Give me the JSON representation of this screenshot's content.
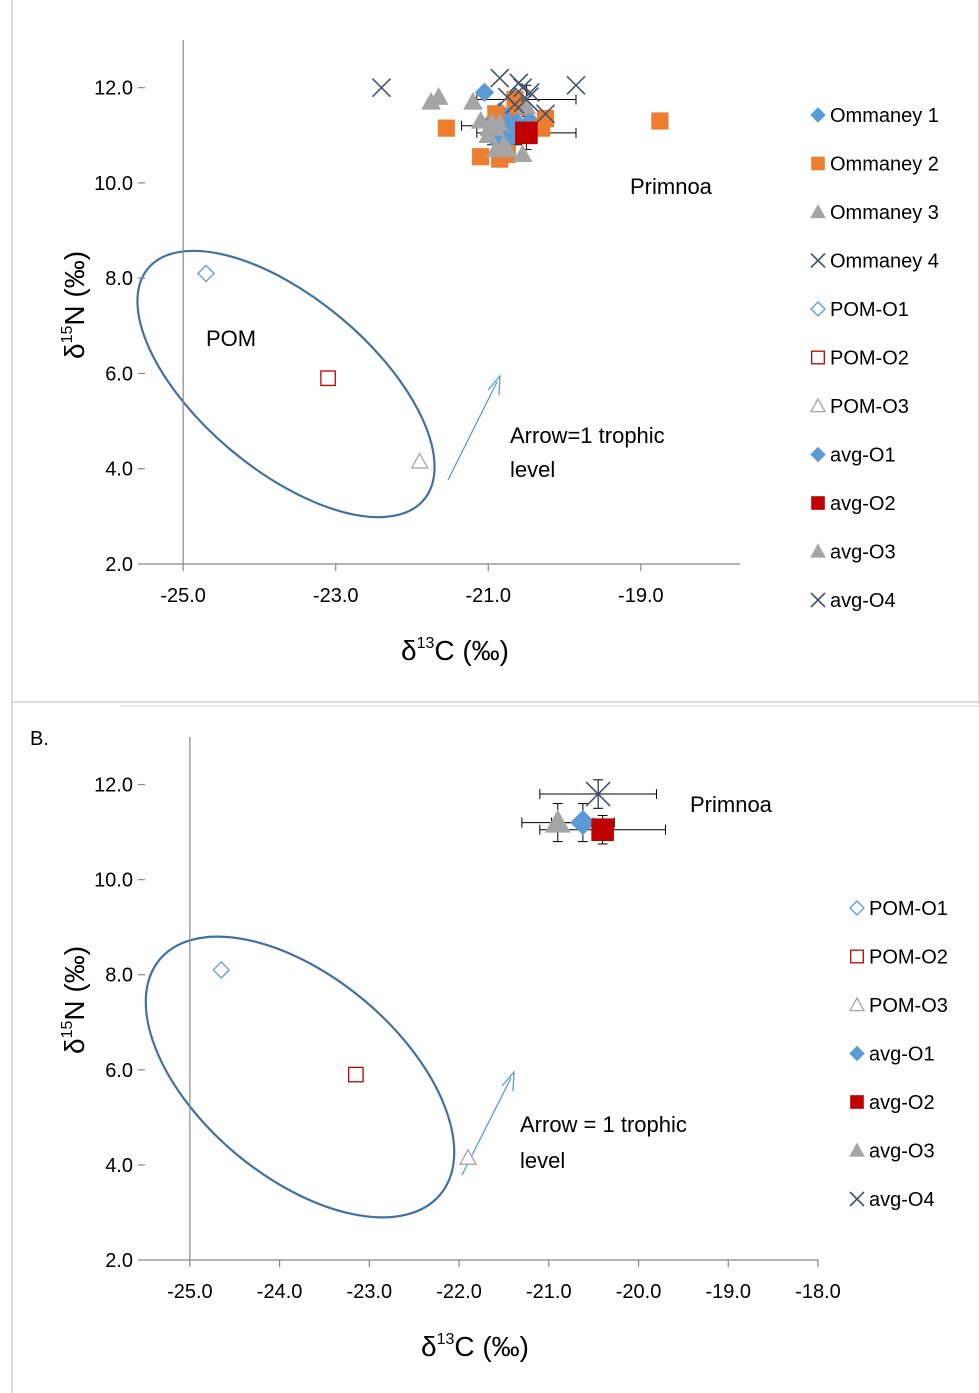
{
  "colors": {
    "blue": "#5B9BD5",
    "orange": "#ED7D31",
    "gray": "#A5A5A5",
    "navy": "#44546A",
    "red": "#C00000",
    "ellipse": "#41719C",
    "axis": "#868686",
    "error": "#000000"
  },
  "chart_data": [
    {
      "type": "scatter",
      "panel_label": "",
      "xlabel_main": "δ",
      "xlabel_sup": "13",
      "xlabel_rest": "C (‰)",
      "ylabel_main": "δ",
      "ylabel_sup": "15",
      "ylabel_rest": "N (‰)",
      "xlim": [
        -25.5,
        -17.7
      ],
      "ylim": [
        2.0,
        13.0
      ],
      "xticks": [
        -25.0,
        -23.0,
        -21.0,
        -19.0
      ],
      "yticks": [
        2.0,
        4.0,
        6.0,
        8.0,
        10.0,
        12.0
      ],
      "xtick_labels": [
        "-25.0",
        "-23.0",
        "-21.0",
        "-19.0"
      ],
      "ytick_labels": [
        "2.0",
        "4.0",
        "6.0",
        "8.0",
        "10.0",
        "12.0"
      ],
      "annotations": {
        "primnoa": "Primnoa",
        "pom": "POM",
        "arrow_line1": "Arrow=1 trophic",
        "arrow_line2": "level"
      },
      "legend_position": "right",
      "series": [
        {
          "name": "Ommaney 1",
          "marker": "diamond",
          "color": "blue",
          "x": [
            -21.05,
            -20.95,
            -20.9,
            -20.85,
            -20.75,
            -20.55,
            -20.45,
            -20.85,
            -20.7
          ],
          "y": [
            11.9,
            11.3,
            10.9,
            11.1,
            11.4,
            11.05,
            11.3,
            11.5,
            10.95
          ]
        },
        {
          "name": "Ommaney 2",
          "marker": "square",
          "color": "orange",
          "x": [
            -21.55,
            -21.1,
            -20.9,
            -20.85,
            -20.75,
            -20.6,
            -20.3,
            -20.25,
            -18.75,
            -20.65
          ],
          "y": [
            11.15,
            10.55,
            11.45,
            10.5,
            10.6,
            11.6,
            11.15,
            11.35,
            11.3,
            11.75
          ]
        },
        {
          "name": "Ommaney 3",
          "marker": "triangle",
          "color": "gray",
          "x": [
            -21.75,
            -21.65,
            -21.2,
            -21.1,
            -21.0,
            -20.9,
            -20.8,
            -20.75,
            -20.55,
            -20.5,
            -20.85
          ],
          "y": [
            11.7,
            11.8,
            11.7,
            11.3,
            11.0,
            10.7,
            10.8,
            10.7,
            10.6,
            11.6,
            11.25
          ]
        },
        {
          "name": "Ommaney 4",
          "marker": "x",
          "color": "navy",
          "x": [
            -22.4,
            -20.85,
            -20.75,
            -20.6,
            -20.55,
            -20.45,
            -20.25,
            -19.85,
            -20.65
          ],
          "y": [
            12.0,
            12.2,
            11.8,
            12.1,
            12.0,
            11.9,
            11.45,
            12.05,
            11.65
          ]
        },
        {
          "name": "POM-O1",
          "marker": "diamond-open",
          "color": "blue",
          "x": [
            -24.7
          ],
          "y": [
            8.1
          ]
        },
        {
          "name": "POM-O2",
          "marker": "square-open",
          "color": "red",
          "x": [
            -23.1
          ],
          "y": [
            5.9
          ]
        },
        {
          "name": "POM-O3",
          "marker": "triangle-open",
          "color": "gray",
          "x": [
            -21.9
          ],
          "y": [
            4.15
          ]
        },
        {
          "name": "avg-O1",
          "marker": "diamond",
          "color": "blue",
          "x": [
            -20.62
          ],
          "y": [
            11.2
          ],
          "xerr": [
            0.35
          ],
          "yerr": [
            0.4
          ]
        },
        {
          "name": "avg-O2",
          "marker": "square",
          "color": "red",
          "x": [
            -20.5
          ],
          "y": [
            11.05
          ],
          "xerr": [
            0.65
          ],
          "yerr": [
            0.35
          ]
        },
        {
          "name": "avg-O3",
          "marker": "triangle",
          "color": "gray",
          "x": [
            -20.95
          ],
          "y": [
            11.2
          ],
          "xerr": [
            0.4
          ],
          "yerr": [
            0.4
          ]
        },
        {
          "name": "avg-O4",
          "marker": "x",
          "color": "navy",
          "x": [
            -20.5
          ],
          "y": [
            11.75
          ],
          "xerr": [
            0.65
          ],
          "yerr": [
            0.3
          ]
        }
      ]
    },
    {
      "type": "scatter",
      "panel_label": "B.",
      "xlabel_main": "δ",
      "xlabel_sup": "13",
      "xlabel_rest": "C (‰)",
      "ylabel_main": "δ",
      "ylabel_sup": "15",
      "ylabel_rest": "N (‰)",
      "xlim": [
        -25.5,
        -18.0
      ],
      "ylim": [
        2.0,
        13.0
      ],
      "xticks": [
        -25.0,
        -24.0,
        -23.0,
        -22.0,
        -21.0,
        -20.0,
        -19.0,
        -18.0
      ],
      "yticks": [
        2.0,
        4.0,
        6.0,
        8.0,
        10.0,
        12.0
      ],
      "xtick_labels": [
        "-25.0",
        "-24.0",
        "-23.0",
        "-22.0",
        "-21.0",
        "-20.0",
        "-19.0",
        "-18.0"
      ],
      "ytick_labels": [
        "2.0",
        "4.0",
        "6.0",
        "8.0",
        "10.0",
        "12.0"
      ],
      "annotations": {
        "primnoa": "Primnoa",
        "arrow_line1": "Arrow = 1 trophic",
        "arrow_line2": "level"
      },
      "legend_position": "right",
      "series": [
        {
          "name": "POM-O1",
          "marker": "diamond-open",
          "color": "blue",
          "x": [
            -24.65
          ],
          "y": [
            8.1
          ]
        },
        {
          "name": "POM-O2",
          "marker": "square-open",
          "color": "red",
          "x": [
            -23.15
          ],
          "y": [
            5.9
          ]
        },
        {
          "name": "POM-O3",
          "marker": "triangle-open",
          "color": "gray",
          "x": [
            -21.9
          ],
          "y": [
            4.15
          ]
        },
        {
          "name": "avg-O1",
          "marker": "diamond",
          "color": "blue",
          "x": [
            -20.62
          ],
          "y": [
            11.2
          ],
          "xerr": [
            0.35
          ],
          "yerr": [
            0.4
          ]
        },
        {
          "name": "avg-O2",
          "marker": "square",
          "color": "red",
          "x": [
            -20.4
          ],
          "y": [
            11.05
          ],
          "xerr": [
            0.7
          ],
          "yerr": [
            0.3
          ]
        },
        {
          "name": "avg-O3",
          "marker": "triangle",
          "color": "gray",
          "x": [
            -20.9
          ],
          "y": [
            11.2
          ],
          "xerr": [
            0.4
          ],
          "yerr": [
            0.4
          ]
        },
        {
          "name": "avg-O4",
          "marker": "x",
          "color": "navy",
          "x": [
            -20.45
          ],
          "y": [
            11.8
          ],
          "xerr": [
            0.65
          ],
          "yerr": [
            0.3
          ]
        }
      ]
    }
  ]
}
